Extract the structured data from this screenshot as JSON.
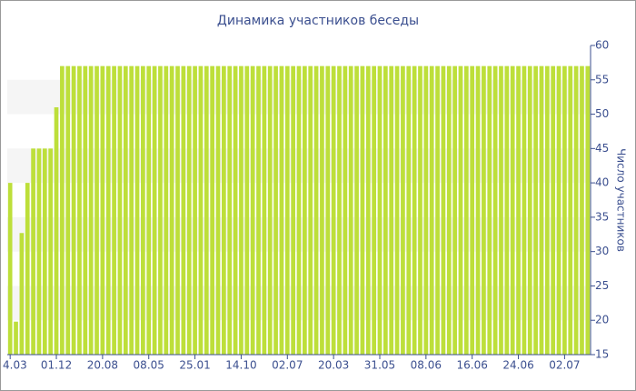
{
  "chart_data": {
    "type": "bar",
    "title": "Динамика участников беседы",
    "y_label": "Число участников",
    "categories": [
      "4.03",
      null,
      null,
      null,
      null,
      null,
      null,
      null,
      "01.12",
      null,
      null,
      null,
      null,
      null,
      null,
      null,
      "20.08",
      null,
      null,
      null,
      null,
      null,
      null,
      null,
      "08.05",
      null,
      null,
      null,
      null,
      null,
      null,
      null,
      "25.01",
      null,
      null,
      null,
      null,
      null,
      null,
      null,
      "14.10",
      null,
      null,
      null,
      null,
      null,
      null,
      null,
      "02.07",
      null,
      null,
      null,
      null,
      null,
      null,
      null,
      "20.03",
      null,
      null,
      null,
      null,
      null,
      null,
      null,
      "31.05",
      null,
      null,
      null,
      null,
      null,
      null,
      null,
      "08.06",
      null,
      null,
      null,
      null,
      null,
      null,
      null,
      "16.06",
      null,
      null,
      null,
      null,
      null,
      null,
      null,
      "24.06",
      null,
      null,
      null,
      null,
      null,
      null,
      null,
      "02.07",
      null,
      null,
      null,
      null
    ],
    "values": [
      40,
      19.8,
      32.7,
      40,
      45,
      45,
      45,
      45,
      51,
      57,
      57,
      57,
      57,
      57,
      57,
      57,
      57,
      57,
      57,
      57,
      57,
      57,
      57,
      57,
      57,
      57,
      57,
      57,
      57,
      57,
      57,
      57,
      57,
      57,
      57,
      57,
      57,
      57,
      57,
      57,
      57,
      57,
      57,
      57,
      57,
      57,
      57,
      57,
      57,
      57,
      57,
      57,
      57,
      57,
      57,
      57,
      57,
      57,
      57,
      57,
      57,
      57,
      57,
      57,
      57,
      57,
      57,
      57,
      57,
      57,
      57,
      57,
      57,
      57,
      57,
      57,
      57,
      57,
      57,
      57,
      57,
      57,
      57,
      57,
      57,
      57,
      57,
      57,
      57,
      57,
      57,
      57,
      57,
      57,
      57,
      57,
      57,
      57,
      57,
      57,
      57
    ],
    "color": "#bddf3a",
    "ylim": [
      15,
      60
    ],
    "yticks": [
      15,
      20,
      25,
      30,
      35,
      40,
      45,
      50,
      55,
      60
    ],
    "grid": "bands",
    "y_axis_side": "right"
  }
}
